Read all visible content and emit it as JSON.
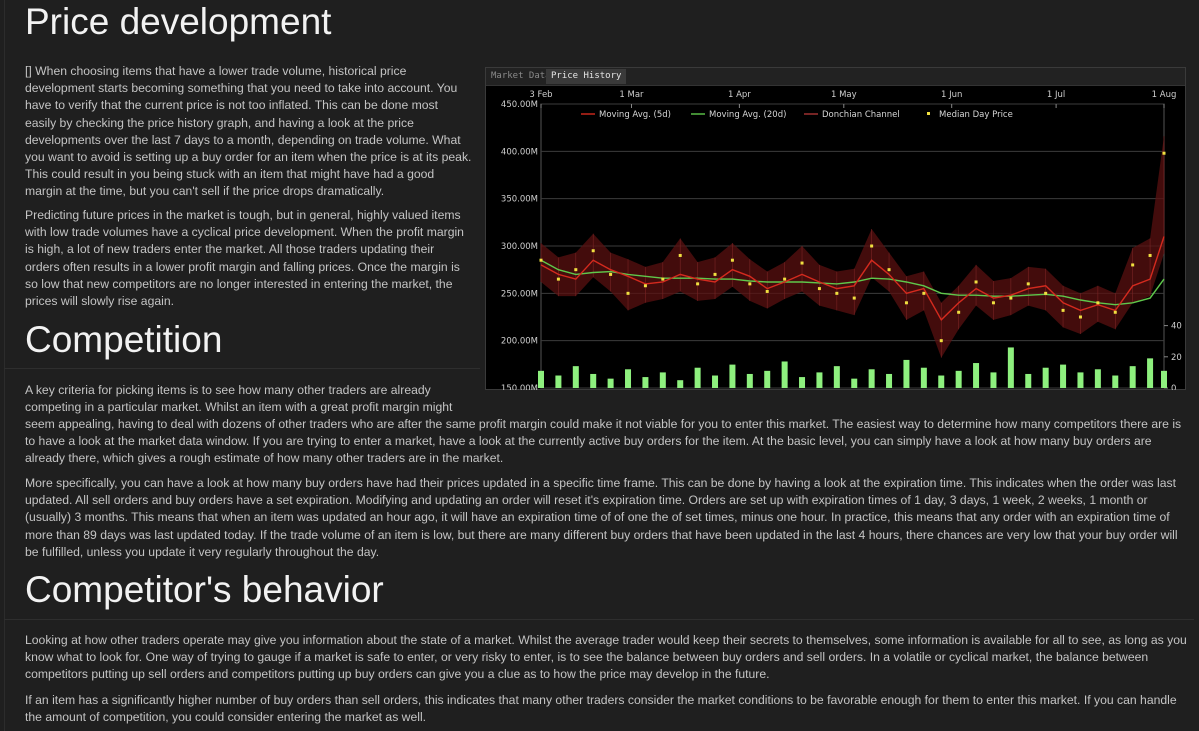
{
  "sections": {
    "price_development": {
      "title": "Price development",
      "p1": "[] When choosing items that have a lower trade volume, historical price development starts becoming something that you need to take into account. You have to verify that the current price is not too inflated. This can be done most easily by checking the price history graph, and having a look at the price developments over the last 7 days to a month, depending on trade volume. What you want to avoid is setting up a buy order for an item when the price is at its peak. This could result in you being stuck with an item that might have had a good margin at the time, but you can't sell if the price drops dramatically.",
      "p2": "Predicting future prices in the market is tough, but in general, highly valued items with low trade volumes have a cyclical price development. When the profit margin is high, a lot of new traders enter the market. All those traders updating their orders often results in a lower profit margin and falling prices. Once the margin is so low that new competitors are no longer interested in entering the market, the prices will slowly rise again."
    },
    "competition": {
      "title": "Competition",
      "p1_line1": "A key criteria for picking items is to see how many other traders are already",
      "p1_line2": "competing in a particular market. Whilst an item with a great profit margin might",
      "p1_rest": "seem appealing, having to deal with dozens of other traders who are after the same profit margin could make it not viable for you to enter this market. The easiest way to determine how many competitors there are is to have a look at the market data window. If you are trying to enter a market, have a look at the currently active buy orders for the item. At the basic level, you can simply have a look at how many buy orders are already there, which gives a rough estimate of how many other traders are in the market.",
      "p2": "More specifically, you can have a look at how many buy orders have had their prices updated in a specific time frame. This can be done by having a look at the expiration time. This indicates when the order was last updated. All sell orders and buy orders have a set expiration. Modifying and updating an order will reset it's expiration time. Orders are set up with expiration times of 1 day, 3 days, 1 week, 2 weeks, 1 month or (usually) 3 months. This means that when an item was updated an hour ago, it will have an expiration time of of one the of set times, minus one hour. In practice, this means that any order with an expiration time of more than 89 days was last updated today. If the trade volume of an item is low, but there are many different buy orders that have been updated in the last 4 hours, there chances are very low that your buy order will be fulfilled, unless you update it very regularly throughout the day."
    },
    "behavior": {
      "title": "Competitor's behavior",
      "p1": "Looking at how other traders operate may give you information about the state of a market. Whilst the average trader would keep their secrets to themselves, some information is available for all to see, as long as you know what to look for. One way of trying to gauge if a market is safe to enter, or very risky to enter, is to see the balance between buy orders and sell orders. In a volatile or cyclical market, the balance between competitors putting up sell orders and competitors putting up buy orders can give you a clue as to how the price may develop in the future.",
      "p2": "If an item has a significantly higher number of buy orders than sell orders, this indicates that many other traders consider the market conditions to be favorable enough for them to enter this market. If you can handle the amount of competition, you could consider entering the market as well."
    }
  },
  "chart_window": {
    "tabs": [
      {
        "label": "Market Data",
        "active": false
      },
      {
        "label": "Price History",
        "active": true
      }
    ]
  },
  "chart_data": {
    "type": "line",
    "x_ticks": [
      "3 Feb",
      "1 Mar",
      "1 Apr",
      "1 May",
      "1 Jun",
      "1 Jul",
      "1 Aug"
    ],
    "y_ticks": [
      "450.00M",
      "400.00M",
      "350.00M",
      "300.00M",
      "250.00M",
      "200.00M",
      "150.00M"
    ],
    "y_right_ticks": [
      "40",
      "20",
      "0"
    ],
    "ylim": [
      150,
      450
    ],
    "y_right_lim": [
      0,
      50
    ],
    "legend": [
      "Moving Avg. (5d)",
      "Moving Avg. (20d)",
      "Donchian Channel",
      "Median Day Price"
    ],
    "legend_position": "top",
    "colors": {
      "ma5": "#d42a1e",
      "ma20": "#5fc84b",
      "donchian": "#5a1010",
      "median": "#f0e040",
      "volume": "#8ef07e"
    },
    "x_days": [
      0,
      5,
      10,
      15,
      20,
      25,
      30,
      35,
      40,
      45,
      50,
      55,
      60,
      65,
      70,
      75,
      80,
      85,
      90,
      95,
      100,
      105,
      110,
      115,
      120,
      125,
      130,
      135,
      140,
      145,
      150,
      155,
      160,
      165,
      170,
      175,
      179
    ],
    "series": [
      {
        "name": "Moving Avg. (5d)",
        "values": [
          280,
          270,
          265,
          285,
          275,
          268,
          260,
          262,
          270,
          265,
          262,
          275,
          268,
          255,
          262,
          270,
          262,
          255,
          258,
          285,
          270,
          250,
          255,
          222,
          240,
          255,
          245,
          248,
          255,
          258,
          240,
          232,
          238,
          232,
          258,
          265,
          310
        ]
      },
      {
        "name": "Moving Avg. (20d)",
        "values": [
          285,
          275,
          270,
          272,
          273,
          270,
          268,
          266,
          266,
          266,
          265,
          265,
          263,
          262,
          262,
          262,
          261,
          260,
          262,
          266,
          265,
          262,
          258,
          250,
          248,
          248,
          247,
          247,
          248,
          249,
          247,
          243,
          240,
          238,
          240,
          245,
          265
        ]
      },
      {
        "name": "Median Day Price",
        "values": [
          285,
          265,
          275,
          295,
          270,
          250,
          258,
          265,
          290,
          260,
          270,
          285,
          260,
          252,
          265,
          282,
          255,
          250,
          245,
          300,
          275,
          240,
          250,
          200,
          230,
          262,
          240,
          245,
          260,
          250,
          232,
          225,
          240,
          230,
          280,
          290,
          398
        ]
      }
    ],
    "volume": [
      11,
      8,
      14,
      9,
      6,
      12,
      7,
      10,
      5,
      13,
      8,
      15,
      9,
      11,
      17,
      7,
      10,
      14,
      6,
      12,
      9,
      18,
      13,
      8,
      11,
      16,
      10,
      26,
      9,
      13,
      15,
      10,
      12,
      8,
      14,
      19,
      11
    ]
  }
}
